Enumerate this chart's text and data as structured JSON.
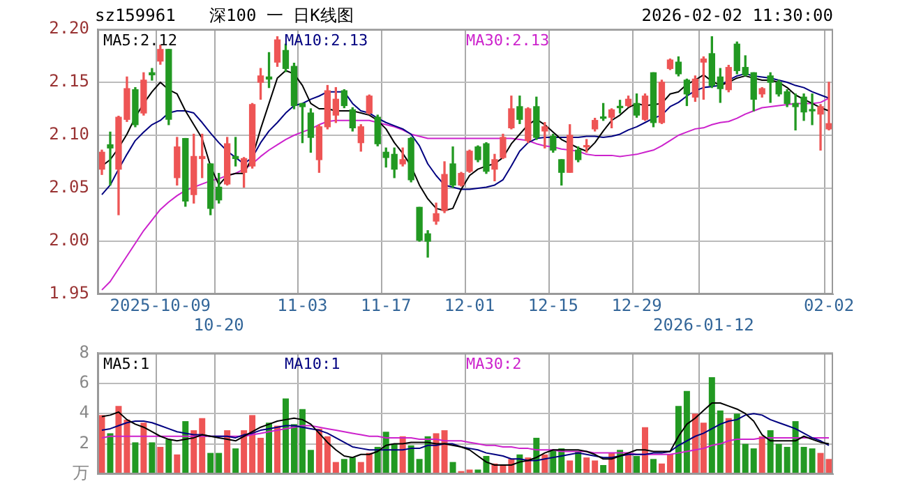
{
  "chart_data": [
    {
      "type": "candlestick",
      "title": "深100 一 日K线图",
      "subtitle": "sz159961",
      "annotations": [
        "2026-02-02 11:30:00"
      ],
      "categories": [
        null,
        null,
        null,
        null,
        null,
        null,
        null,
        "2025-10-09",
        null,
        null,
        null,
        null,
        null,
        null,
        "10-20",
        null,
        null,
        null,
        null,
        null,
        null,
        null,
        null,
        null,
        "11-03",
        null,
        null,
        null,
        null,
        null,
        null,
        null,
        null,
        null,
        "11-17",
        null,
        null,
        null,
        null,
        null,
        null,
        null,
        null,
        null,
        "12-01",
        null,
        null,
        null,
        null,
        null,
        null,
        null,
        null,
        null,
        "12-15",
        null,
        null,
        null,
        null,
        null,
        null,
        null,
        null,
        null,
        "12-29",
        null,
        null,
        null,
        null,
        null,
        null,
        null,
        "2026-01-12",
        null,
        null,
        null,
        null,
        null,
        null,
        null,
        null,
        null,
        null,
        null,
        null,
        null,
        null,
        "02-02"
      ],
      "ohlc": [
        [
          2.068,
          2.086,
          2.063,
          2.084
        ],
        [
          2.091,
          2.103,
          2.053,
          2.088
        ],
        [
          2.068,
          2.118,
          2.025,
          2.117
        ],
        [
          2.115,
          2.155,
          2.113,
          2.144
        ],
        [
          2.143,
          2.145,
          2.108,
          2.11
        ],
        [
          2.121,
          2.159,
          2.119,
          2.152
        ],
        [
          2.159,
          2.163,
          2.152,
          2.157
        ],
        [
          2.17,
          2.185,
          2.167,
          2.181
        ],
        [
          2.181,
          2.181,
          2.11,
          2.115
        ],
        [
          2.06,
          2.098,
          2.053,
          2.089
        ],
        [
          2.097,
          2.097,
          2.033,
          2.038
        ],
        [
          2.044,
          2.101,
          2.036,
          2.08
        ],
        [
          2.078,
          2.101,
          2.06,
          2.08
        ],
        [
          2.073,
          2.073,
          2.025,
          2.031
        ],
        [
          2.051,
          2.064,
          2.036,
          2.039
        ],
        [
          2.054,
          2.098,
          2.053,
          2.092
        ],
        [
          2.08,
          2.098,
          2.071,
          2.078
        ],
        [
          2.065,
          2.079,
          2.051,
          2.078
        ],
        [
          2.071,
          2.13,
          2.069,
          2.129
        ],
        [
          2.15,
          2.163,
          2.134,
          2.156
        ],
        [
          2.155,
          2.178,
          2.145,
          2.153
        ],
        [
          2.169,
          2.193,
          2.165,
          2.19
        ],
        [
          2.18,
          2.186,
          2.16,
          2.163
        ],
        [
          2.165,
          2.168,
          2.125,
          2.128
        ],
        [
          2.13,
          2.13,
          2.093,
          2.127
        ],
        [
          2.121,
          2.125,
          2.084,
          2.098
        ],
        [
          2.077,
          2.11,
          2.065,
          2.108
        ],
        [
          2.108,
          2.147,
          2.106,
          2.142
        ],
        [
          2.119,
          2.145,
          2.112,
          2.134
        ],
        [
          2.142,
          2.143,
          2.126,
          2.128
        ],
        [
          2.124,
          2.126,
          2.104,
          2.107
        ],
        [
          2.093,
          2.11,
          2.085,
          2.108
        ],
        [
          2.121,
          2.138,
          2.12,
          2.137
        ],
        [
          2.117,
          2.119,
          2.09,
          2.092
        ],
        [
          2.084,
          2.088,
          2.07,
          2.079
        ],
        [
          2.082,
          2.088,
          2.06,
          2.068
        ],
        [
          2.073,
          2.088,
          2.071,
          2.077
        ],
        [
          2.097,
          2.098,
          2.056,
          2.058
        ],
        [
          2.032,
          2.032,
          2.0,
          2.001
        ],
        [
          2.007,
          2.01,
          1.985,
          2.0
        ],
        [
          2.019,
          2.036,
          2.016,
          2.026
        ],
        [
          2.029,
          2.075,
          2.027,
          2.063
        ],
        [
          2.073,
          2.089,
          2.051,
          2.053
        ],
        [
          2.053,
          2.065,
          2.052,
          2.064
        ],
        [
          2.066,
          2.086,
          2.065,
          2.085
        ],
        [
          2.089,
          2.09,
          2.075,
          2.077
        ],
        [
          2.092,
          2.093,
          2.064,
          2.066
        ],
        [
          2.068,
          2.082,
          2.057,
          2.077
        ],
        [
          2.079,
          2.101,
          2.078,
          2.098
        ],
        [
          2.107,
          2.137,
          2.106,
          2.125
        ],
        [
          2.127,
          2.137,
          2.111,
          2.115
        ],
        [
          2.095,
          2.126,
          2.093,
          2.125
        ],
        [
          2.127,
          2.136,
          2.096,
          2.098
        ],
        [
          2.104,
          2.112,
          2.088,
          2.108
        ],
        [
          2.099,
          2.101,
          2.084,
          2.086
        ],
        [
          2.077,
          2.077,
          2.053,
          2.065
        ],
        [
          2.065,
          2.11,
          2.065,
          2.1
        ],
        [
          2.086,
          2.089,
          2.075,
          2.077
        ],
        [
          2.089,
          2.096,
          2.084,
          2.09
        ],
        [
          2.106,
          2.116,
          2.104,
          2.114
        ],
        [
          2.117,
          2.13,
          2.114,
          2.116
        ],
        [
          2.117,
          2.125,
          2.107,
          2.124
        ],
        [
          2.127,
          2.133,
          2.121,
          2.126
        ],
        [
          2.128,
          2.137,
          2.127,
          2.134
        ],
        [
          2.13,
          2.139,
          2.117,
          2.119
        ],
        [
          2.115,
          2.139,
          2.114,
          2.137
        ],
        [
          2.159,
          2.159,
          2.108,
          2.112
        ],
        [
          2.112,
          2.152,
          2.111,
          2.15
        ],
        [
          2.163,
          2.172,
          2.162,
          2.171
        ],
        [
          2.169,
          2.174,
          2.156,
          2.158
        ],
        [
          2.152,
          2.153,
          2.128,
          2.139
        ],
        [
          2.136,
          2.156,
          2.132,
          2.153
        ],
        [
          2.169,
          2.174,
          2.134,
          2.172
        ],
        [
          2.177,
          2.193,
          2.145,
          2.147
        ],
        [
          2.155,
          2.163,
          2.131,
          2.144
        ],
        [
          2.143,
          2.166,
          2.141,
          2.164
        ],
        [
          2.186,
          2.188,
          2.158,
          2.161
        ],
        [
          2.164,
          2.175,
          2.156,
          2.157
        ],
        [
          2.159,
          2.159,
          2.123,
          2.134
        ],
        [
          2.139,
          2.145,
          2.136,
          2.144
        ],
        [
          2.156,
          2.159,
          2.131,
          2.15
        ],
        [
          2.15,
          2.152,
          2.137,
          2.139
        ],
        [
          2.141,
          2.143,
          2.127,
          2.13
        ],
        [
          2.13,
          2.139,
          2.105,
          2.127
        ],
        [
          2.136,
          2.139,
          2.114,
          2.122
        ],
        [
          2.124,
          2.139,
          2.11,
          2.123
        ],
        [
          2.12,
          2.129,
          2.086,
          2.127
        ],
        [
          2.106,
          2.15,
          2.105,
          2.111
        ]
      ],
      "colors": [
        "#ee5555",
        "#229922",
        "#ee5555",
        "#ee5555",
        "#229922",
        "#ee5555",
        "#229922",
        "#ee5555",
        "#229922",
        "#ee5555",
        "#229922",
        "#ee5555",
        "#ee5555",
        "#229922",
        "#229922",
        "#ee5555",
        "#229922",
        "#ee5555",
        "#ee5555",
        "#ee5555",
        "#229922",
        "#ee5555",
        "#229922",
        "#229922",
        "#229922",
        "#229922",
        "#ee5555",
        "#ee5555",
        "#ee5555",
        "#229922",
        "#229922",
        "#ee5555",
        "#ee5555",
        "#229922",
        "#229922",
        "#229922",
        "#ee5555",
        "#229922",
        "#229922",
        "#229922",
        "#ee5555",
        "#ee5555",
        "#229922",
        "#ee5555",
        "#ee5555",
        "#229922",
        "#229922",
        "#ee5555",
        "#ee5555",
        "#ee5555",
        "#229922",
        "#ee5555",
        "#229922",
        "#ee5555",
        "#229922",
        "#229922",
        "#ee5555",
        "#229922",
        "#ee5555",
        "#ee5555",
        "#229922",
        "#ee5555",
        "#229922",
        "#ee5555",
        "#229922",
        "#ee5555",
        "#229922",
        "#ee5555",
        "#ee5555",
        "#229922",
        "#229922",
        "#ee5555",
        "#ee5555",
        "#229922",
        "#229922",
        "#ee5555",
        "#229922",
        "#229922",
        "#229922",
        "#ee5555",
        "#229922",
        "#229922",
        "#229922",
        "#229922",
        "#229922",
        "#229922",
        "#ee5555",
        "#ee5555"
      ],
      "series": [
        {
          "name": "MA5:2.12",
          "type": "line",
          "color": "#000000",
          "values": [
            2.071,
            2.077,
            2.088,
            2.101,
            2.117,
            2.13,
            2.141,
            2.15,
            2.143,
            2.139,
            2.123,
            2.11,
            2.097,
            2.071,
            2.053,
            2.062,
            2.064,
            2.064,
            2.079,
            2.106,
            2.13,
            2.154,
            2.161,
            2.158,
            2.147,
            2.13,
            2.125,
            2.125,
            2.123,
            2.123,
            2.123,
            2.121,
            2.119,
            2.114,
            2.106,
            2.093,
            2.083,
            2.071,
            2.053,
            2.04,
            2.031,
            2.029,
            2.031,
            2.049,
            2.062,
            2.068,
            2.071,
            2.073,
            2.079,
            2.092,
            2.101,
            2.11,
            2.115,
            2.11,
            2.103,
            2.096,
            2.092,
            2.088,
            2.085,
            2.093,
            2.104,
            2.114,
            2.119,
            2.126,
            2.13,
            2.128,
            2.129,
            2.13,
            2.139,
            2.141,
            2.148,
            2.152,
            2.157,
            2.151,
            2.147,
            2.15,
            2.154,
            2.156,
            2.154,
            2.152,
            2.152,
            2.15,
            2.145,
            2.138,
            2.134,
            2.13,
            2.126,
            2.123
          ]
        },
        {
          "name": "MA10:2.13",
          "type": "line",
          "color": "#000080",
          "values": [
            2.044,
            2.053,
            2.068,
            2.082,
            2.095,
            2.103,
            2.11,
            2.114,
            2.121,
            2.123,
            2.123,
            2.121,
            2.112,
            2.102,
            2.093,
            2.085,
            2.079,
            2.073,
            2.079,
            2.093,
            2.104,
            2.112,
            2.121,
            2.128,
            2.13,
            2.134,
            2.137,
            2.141,
            2.141,
            2.141,
            2.13,
            2.123,
            2.121,
            2.116,
            2.112,
            2.109,
            2.106,
            2.101,
            2.09,
            2.073,
            2.062,
            2.053,
            2.051,
            2.049,
            2.049,
            2.05,
            2.051,
            2.053,
            2.058,
            2.071,
            2.085,
            2.093,
            2.097,
            2.098,
            2.098,
            2.098,
            2.098,
            2.098,
            2.099,
            2.099,
            2.098,
            2.099,
            2.101,
            2.105,
            2.108,
            2.112,
            2.116,
            2.119,
            2.127,
            2.131,
            2.137,
            2.142,
            2.145,
            2.146,
            2.147,
            2.152,
            2.156,
            2.158,
            2.156,
            2.155,
            2.154,
            2.152,
            2.15,
            2.147,
            2.145,
            2.141,
            2.138,
            2.135
          ]
        },
        {
          "name": "MA30:2.13",
          "type": "line",
          "color": "#cc22cc",
          "values": [
            1.954,
            1.962,
            1.974,
            1.986,
            1.998,
            2.01,
            2.02,
            2.03,
            2.037,
            2.043,
            2.048,
            2.051,
            2.054,
            2.057,
            2.059,
            2.062,
            2.064,
            2.068,
            2.073,
            2.08,
            2.086,
            2.091,
            2.096,
            2.1,
            2.103,
            2.106,
            2.11,
            2.113,
            2.114,
            2.114,
            2.114,
            2.114,
            2.114,
            2.112,
            2.11,
            2.108,
            2.105,
            2.101,
            2.099,
            2.097,
            2.097,
            2.097,
            2.097,
            2.097,
            2.097,
            2.097,
            2.097,
            2.097,
            2.097,
            2.097,
            2.096,
            2.095,
            2.092,
            2.09,
            2.089,
            2.087,
            2.086,
            2.085,
            2.082,
            2.081,
            2.081,
            2.081,
            2.08,
            2.081,
            2.082,
            2.084,
            2.086,
            2.09,
            2.095,
            2.1,
            2.103,
            2.106,
            2.107,
            2.11,
            2.112,
            2.113,
            2.116,
            2.12,
            2.123,
            2.126,
            2.127,
            2.128,
            2.129,
            2.13,
            2.13,
            2.13,
            2.131,
            2.135
          ]
        }
      ],
      "ylim": [
        1.95,
        2.2
      ],
      "yticks": [
        1.95,
        {
          "value": 2,
          "label": "2.00"
        },
        2.05,
        {
          "value": 2.1,
          "label": "2.10"
        },
        2.15,
        {
          "value": 2.2,
          "label": "2.20"
        }
      ],
      "grid": true
    },
    {
      "type": "bar",
      "tick_labels": "y",
      "categories": [
        null,
        null,
        null,
        null,
        null,
        null,
        null,
        null,
        null,
        null,
        null,
        null,
        null,
        null,
        null,
        null,
        null,
        null,
        null,
        null,
        null,
        null,
        null,
        null,
        null,
        null,
        null,
        null,
        null,
        null,
        null,
        null,
        null,
        null,
        null,
        null,
        null,
        null,
        null,
        null,
        null,
        null,
        null,
        null,
        null,
        null,
        null,
        null,
        null,
        null,
        null,
        null,
        null,
        null,
        null,
        null,
        null,
        null,
        null,
        null,
        null,
        null,
        null,
        null,
        null,
        null,
        null,
        null,
        null,
        null,
        null,
        null,
        null,
        null,
        null,
        null,
        null,
        null,
        null,
        null,
        null,
        null,
        null,
        null,
        null,
        null,
        null,
        null
      ],
      "series": [
        {
          "type": "bar",
          "values": [
            3.9,
            2.7,
            4.5,
            3.6,
            2.1,
            3.4,
            2.1,
            1.8,
            2.3,
            1.3,
            3.5,
            2.9,
            3.7,
            1.4,
            1.4,
            2.9,
            1.7,
            2.9,
            3.9,
            2.4,
            3.4,
            3.2,
            5.0,
            3.3,
            4.3,
            1.6,
            3.0,
            2.5,
            0.8,
            1.0,
            1.1,
            0.8,
            1.4,
            1.8,
            2.8,
            2.0,
            2.5,
            1.9,
            1.0,
            2.5,
            2.7,
            2.9,
            0.8,
            0.2,
            0.3,
            0.3,
            1.2,
            0.7,
            0.6,
            1.0,
            1.3,
            1.1,
            2.4,
            1.3,
            1.6,
            1.7,
            0.9,
            1.5,
            1.1,
            0.9,
            0.6,
            1.4,
            1.6,
            1.4,
            1.2,
            3.1,
            1.0,
            0.7,
            1.3,
            4.5,
            5.5,
            4.0,
            3.4,
            6.4,
            4.2,
            3.7,
            4.0,
            2.0,
            1.7,
            2.5,
            2.9,
            2.0,
            1.8,
            3.5,
            1.8,
            1.7,
            1.4,
            1.0
          ],
          "colors": [
            "#ee5555",
            "#229922",
            "#ee5555",
            "#ee5555",
            "#229922",
            "#ee5555",
            "#229922",
            "#ee5555",
            "#229922",
            "#ee5555",
            "#229922",
            "#ee5555",
            "#ee5555",
            "#229922",
            "#229922",
            "#ee5555",
            "#229922",
            "#ee5555",
            "#ee5555",
            "#ee5555",
            "#229922",
            "#ee5555",
            "#229922",
            "#229922",
            "#229922",
            "#229922",
            "#ee5555",
            "#ee5555",
            "#ee5555",
            "#229922",
            "#229922",
            "#ee5555",
            "#ee5555",
            "#229922",
            "#229922",
            "#229922",
            "#ee5555",
            "#229922",
            "#229922",
            "#229922",
            "#ee5555",
            "#ee5555",
            "#229922",
            "#ee5555",
            "#ee5555",
            "#229922",
            "#229922",
            "#ee5555",
            "#ee5555",
            "#ee5555",
            "#229922",
            "#ee5555",
            "#229922",
            "#ee5555",
            "#229922",
            "#229922",
            "#ee5555",
            "#229922",
            "#ee5555",
            "#ee5555",
            "#229922",
            "#ee5555",
            "#229922",
            "#ee5555",
            "#229922",
            "#ee5555",
            "#229922",
            "#ee5555",
            "#ee5555",
            "#229922",
            "#229922",
            "#ee5555",
            "#ee5555",
            "#229922",
            "#229922",
            "#ee5555",
            "#229922",
            "#229922",
            "#229922",
            "#ee5555",
            "#229922",
            "#229922",
            "#229922",
            "#229922",
            "#229922",
            "#229922",
            "#ee5555",
            "#ee5555"
          ]
        },
        {
          "name": "MA5:1",
          "type": "line",
          "color": "#000000",
          "values": [
            3.8,
            3.9,
            4.1,
            3.6,
            3.3,
            3.1,
            2.8,
            2.5,
            2.3,
            2.2,
            2.3,
            2.4,
            2.6,
            2.5,
            2.4,
            2.3,
            2.2,
            2.5,
            2.8,
            3.1,
            3.3,
            3.5,
            3.6,
            3.7,
            3.6,
            3.3,
            2.7,
            2.1,
            1.6,
            1.2,
            1.1,
            1.3,
            1.3,
            1.5,
            1.9,
            2.0,
            2.0,
            2.1,
            2.1,
            2.1,
            2.0,
            2.0,
            1.9,
            1.8,
            1.6,
            1.2,
            0.8,
            0.6,
            0.6,
            0.6,
            0.8,
            0.9,
            1.1,
            1.4,
            1.6,
            1.6,
            1.6,
            1.6,
            1.5,
            1.3,
            1.0,
            1.0,
            1.2,
            1.4,
            1.6,
            1.6,
            1.5,
            1.5,
            1.5,
            2.5,
            3.3,
            3.7,
            4.2,
            4.7,
            4.7,
            4.5,
            4.3,
            4.0,
            3.5,
            2.6,
            2.2,
            2.2,
            2.2,
            2.2,
            2.5,
            2.3,
            2.1,
            2.0
          ]
        },
        {
          "name": "MA10:1",
          "type": "line",
          "color": "#000080",
          "values": [
            2.9,
            3.0,
            3.2,
            3.4,
            3.5,
            3.5,
            3.4,
            3.2,
            3.0,
            2.8,
            2.7,
            2.6,
            2.6,
            2.5,
            2.5,
            2.5,
            2.4,
            2.6,
            2.7,
            2.9,
            3.0,
            3.1,
            3.2,
            3.2,
            3.1,
            3.0,
            2.9,
            2.7,
            2.4,
            2.1,
            1.8,
            1.7,
            1.6,
            1.6,
            1.6,
            1.6,
            1.6,
            1.7,
            1.7,
            1.9,
            1.9,
            2.0,
            2.0,
            1.8,
            1.7,
            1.6,
            1.4,
            1.3,
            1.2,
            1.0,
            1.0,
            0.9,
            0.9,
            1.0,
            1.1,
            1.2,
            1.3,
            1.4,
            1.3,
            1.2,
            1.1,
            1.1,
            1.2,
            1.3,
            1.3,
            1.3,
            1.4,
            1.4,
            1.5,
            1.9,
            2.2,
            2.5,
            2.7,
            3.0,
            3.3,
            3.5,
            3.6,
            3.9,
            4.0,
            3.9,
            3.6,
            3.4,
            3.2,
            3.0,
            2.7,
            2.4,
            2.2,
            1.9
          ]
        },
        {
          "name": "MA30:2",
          "type": "line",
          "color": "#cc22cc",
          "values": [
            2.4,
            2.5,
            2.5,
            2.5,
            2.5,
            2.5,
            2.5,
            2.5,
            2.5,
            2.5,
            2.5,
            2.5,
            2.5,
            2.5,
            2.5,
            2.5,
            2.5,
            2.5,
            2.6,
            2.7,
            2.8,
            2.9,
            3.0,
            3.1,
            3.2,
            3.2,
            3.1,
            3.0,
            2.9,
            2.8,
            2.7,
            2.6,
            2.5,
            2.5,
            2.4,
            2.4,
            2.4,
            2.4,
            2.3,
            2.3,
            2.3,
            2.2,
            2.2,
            2.2,
            2.1,
            2.0,
            1.9,
            1.9,
            1.8,
            1.8,
            1.7,
            1.7,
            1.6,
            1.6,
            1.6,
            1.5,
            1.5,
            1.5,
            1.5,
            1.4,
            1.4,
            1.4,
            1.4,
            1.4,
            1.3,
            1.3,
            1.3,
            1.3,
            1.3,
            1.4,
            1.5,
            1.6,
            1.7,
            1.9,
            2.0,
            2.2,
            2.3,
            2.3,
            2.3,
            2.4,
            2.4,
            2.4,
            2.4,
            2.4,
            2.4,
            2.4,
            2.4,
            2.4
          ]
        }
      ],
      "ylim": [
        0,
        8
      ],
      "yticks": [
        {
          "value": 0,
          "label": "万"
        },
        2,
        4,
        6,
        8
      ],
      "grid": true
    }
  ]
}
